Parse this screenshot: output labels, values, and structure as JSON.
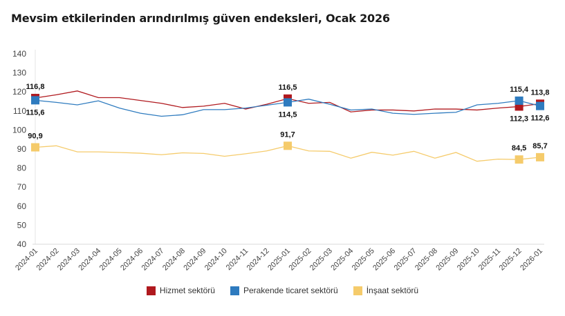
{
  "chart_data": {
    "type": "line",
    "title": "Mevsim etkilerinden arındırılmış güven endeksleri, Ocak 2026",
    "xlabel": "",
    "ylabel": "",
    "ylim": [
      40,
      140
    ],
    "yticks": [
      40,
      50,
      60,
      70,
      80,
      90,
      100,
      110,
      120,
      130,
      140
    ],
    "grid": false,
    "legend": "bottom",
    "categories": [
      "2024-01",
      "2024-02",
      "2024-03",
      "2024-04",
      "2024-05",
      "2024-06",
      "2024-07",
      "2024-08",
      "2024-09",
      "2024-10",
      "2024-11",
      "2024-12",
      "2025-01",
      "2025-02",
      "2025-03",
      "2025-04",
      "2025-05",
      "2025-06",
      "2025-07",
      "2025-08",
      "2025-09",
      "2025-10",
      "2025-11",
      "2025-12",
      "2026-01"
    ],
    "series": [
      {
        "name": "Hizmet sektörü",
        "color": "#b0191e",
        "values": [
          116.8,
          118.5,
          120.5,
          117,
          117,
          115.5,
          114,
          111.8,
          112.5,
          114,
          111,
          113.5,
          116.5,
          114,
          114.5,
          109.5,
          110.5,
          110.5,
          110,
          111,
          111,
          110.5,
          111.5,
          112.3,
          113.8
        ],
        "labels": [
          {
            "i": 0,
            "text": "116,8",
            "pos": "above"
          },
          {
            "i": 12,
            "text": "116,5",
            "pos": "above"
          },
          {
            "i": 23,
            "text": "112,3",
            "pos": "below"
          },
          {
            "i": 24,
            "text": "113,8",
            "pos": "above"
          }
        ]
      },
      {
        "name": "Perakende ticaret sektörü",
        "color": "#2e7bbf",
        "values": [
          115.6,
          114.5,
          113.2,
          115.3,
          111.5,
          108.8,
          107.2,
          108,
          110.7,
          110.7,
          111.5,
          113,
          114.5,
          116.2,
          113.5,
          110.5,
          111,
          108.8,
          108.2,
          108.8,
          109.3,
          113.2,
          114,
          115.4,
          112.6
        ],
        "labels": [
          {
            "i": 0,
            "text": "115,6",
            "pos": "below"
          },
          {
            "i": 12,
            "text": "114,5",
            "pos": "below"
          },
          {
            "i": 23,
            "text": "115,4",
            "pos": "above"
          },
          {
            "i": 24,
            "text": "112,6",
            "pos": "below"
          }
        ]
      },
      {
        "name": "İnşaat sektörü",
        "color": "#f5cb6b",
        "values": [
          90.9,
          91.7,
          88.5,
          88.5,
          88.2,
          87.8,
          87,
          88,
          87.7,
          86.2,
          87.5,
          89,
          91.7,
          89,
          88.8,
          85.2,
          88.3,
          86.8,
          88.8,
          85.2,
          88.2,
          83.6,
          84.7,
          84.5,
          85.7
        ],
        "labels": [
          {
            "i": 0,
            "text": "90,9",
            "pos": "above"
          },
          {
            "i": 12,
            "text": "91,7",
            "pos": "above"
          },
          {
            "i": 23,
            "text": "84,5",
            "pos": "above"
          },
          {
            "i": 24,
            "text": "85,7",
            "pos": "above"
          }
        ]
      }
    ]
  }
}
